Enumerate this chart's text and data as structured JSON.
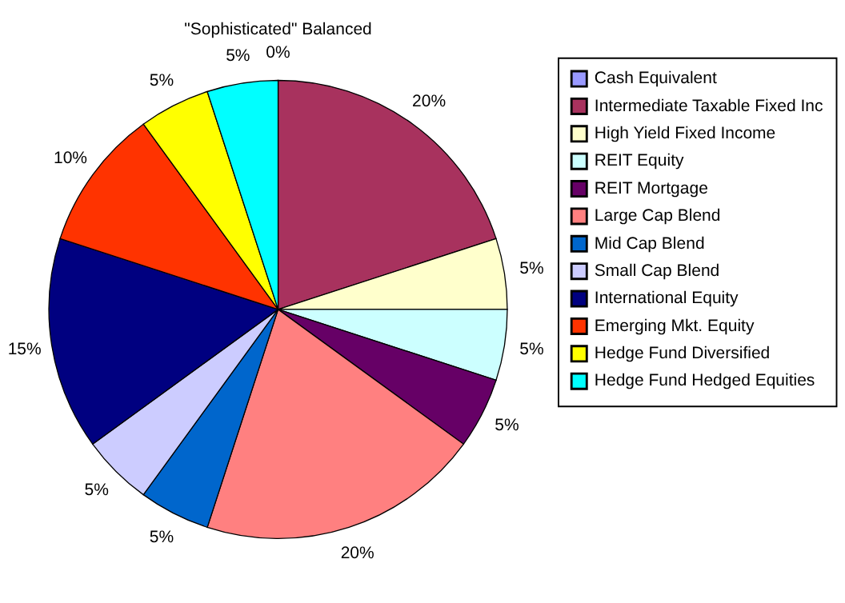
{
  "chart_data": {
    "type": "pie",
    "title": "\"Sophisticated\" Balanced",
    "categories": [
      "Cash Equivalent",
      "Intermediate Taxable Fixed Inc",
      "High Yield Fixed Income",
      "REIT Equity",
      "REIT Mortgage",
      "Large Cap Blend",
      "Mid Cap Blend",
      "Small Cap Blend",
      "International Equity",
      "Emerging Mkt. Equity",
      "Hedge Fund Diversified",
      "Hedge Fund Hedged Equities"
    ],
    "values": [
      0,
      20,
      5,
      5,
      5,
      20,
      5,
      5,
      15,
      10,
      5,
      5
    ],
    "value_labels": [
      "0%",
      "20%",
      "5%",
      "5%",
      "5%",
      "20%",
      "5%",
      "5%",
      "15%",
      "10%",
      "5%",
      "5%"
    ],
    "colors": [
      "#9999ff",
      "#a8325e",
      "#ffffcc",
      "#ccffff",
      "#660066",
      "#ff8080",
      "#0066cc",
      "#ccccff",
      "#000080",
      "#ff3300",
      "#ffff00",
      "#00ffff"
    ],
    "legend": "right"
  }
}
